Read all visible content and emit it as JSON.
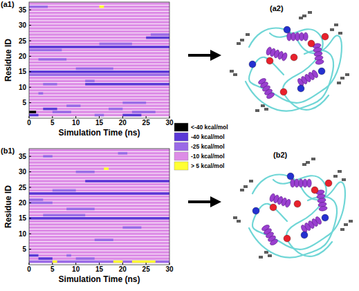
{
  "chart_data": [
    {
      "type": "heatmap",
      "title": "(a1)",
      "x_label": "Simulation Time (ns)",
      "y_label": "Residue ID",
      "xlim": [
        0,
        30
      ],
      "xticks": [
        0,
        5,
        10,
        15,
        20,
        25,
        30
      ],
      "ylim": [
        0,
        37.5
      ],
      "yticks": [
        5,
        10,
        15,
        20,
        25,
        30,
        35
      ],
      "base_level": 3,
      "cells": [
        [
          1,
          0,
          2,
          1
        ],
        [
          1,
          14,
          16,
          2
        ],
        [
          1,
          20,
          24,
          1
        ],
        [
          2,
          0,
          1.5,
          0
        ],
        [
          2,
          5,
          9,
          2
        ],
        [
          2,
          22,
          27,
          2
        ],
        [
          3,
          3,
          6,
          1
        ],
        [
          3,
          17,
          20,
          2
        ],
        [
          4,
          8,
          11,
          2
        ],
        [
          5,
          20,
          25,
          2
        ],
        [
          8,
          2,
          3,
          2
        ],
        [
          11,
          3,
          6,
          2
        ],
        [
          11,
          12,
          30,
          1
        ],
        [
          12,
          12,
          14,
          2
        ],
        [
          14,
          0,
          30,
          2
        ],
        [
          15,
          0,
          30,
          1
        ],
        [
          16,
          10,
          18,
          2
        ],
        [
          19,
          2,
          8,
          2
        ],
        [
          22,
          0,
          7,
          2
        ],
        [
          23,
          0,
          30,
          1
        ],
        [
          24,
          15,
          22,
          2
        ],
        [
          26,
          25,
          30,
          1
        ],
        [
          27,
          26,
          30,
          2
        ],
        [
          36,
          0,
          4,
          2
        ],
        [
          36,
          15,
          16,
          4
        ]
      ]
    },
    {
      "type": "heatmap",
      "title": "(b1)",
      "x_label": "Simulation Time (ns)",
      "y_label": "Residue ID",
      "xlim": [
        0,
        30
      ],
      "xticks": [
        0,
        5,
        10,
        15,
        20,
        25,
        30
      ],
      "ylim": [
        0,
        37.5
      ],
      "yticks": [
        5,
        10,
        15,
        20,
        25,
        30,
        35
      ],
      "base_level": 3,
      "cells": [
        [
          1,
          0,
          30,
          2
        ],
        [
          1,
          5,
          6,
          4
        ],
        [
          1,
          18,
          20,
          4
        ],
        [
          1,
          22,
          27,
          4
        ],
        [
          2,
          2,
          5,
          1
        ],
        [
          2,
          10,
          14,
          2
        ],
        [
          3,
          0,
          2,
          1
        ],
        [
          3,
          8,
          9,
          2
        ],
        [
          8,
          14,
          18,
          2
        ],
        [
          12,
          20,
          24,
          2
        ],
        [
          15,
          0,
          30,
          1
        ],
        [
          16,
          3,
          12,
          2
        ],
        [
          18,
          8,
          14,
          2
        ],
        [
          20,
          0,
          5,
          2
        ],
        [
          21,
          0,
          3,
          2
        ],
        [
          23,
          0,
          30,
          1
        ],
        [
          24,
          5,
          10,
          2
        ],
        [
          27,
          12,
          30,
          1
        ],
        [
          30,
          10,
          14,
          2
        ],
        [
          31,
          16,
          17,
          4
        ],
        [
          35,
          3,
          5,
          2
        ],
        [
          36,
          19,
          21,
          2
        ]
      ]
    }
  ],
  "color_bar": {
    "labels": [
      "<-40 kcal/mol",
      "-40 kcal/mol",
      "-25 kcal/mol",
      "-10 kcal/mol",
      "> 5 kcal/mol"
    ],
    "colors": [
      "#000000",
      "#5a38d6",
      "#9a6ae6",
      "#dd8de6",
      "#ffff33"
    ]
  },
  "structures": [
    {
      "label": "(a2)"
    },
    {
      "label": "(b2)"
    }
  ]
}
